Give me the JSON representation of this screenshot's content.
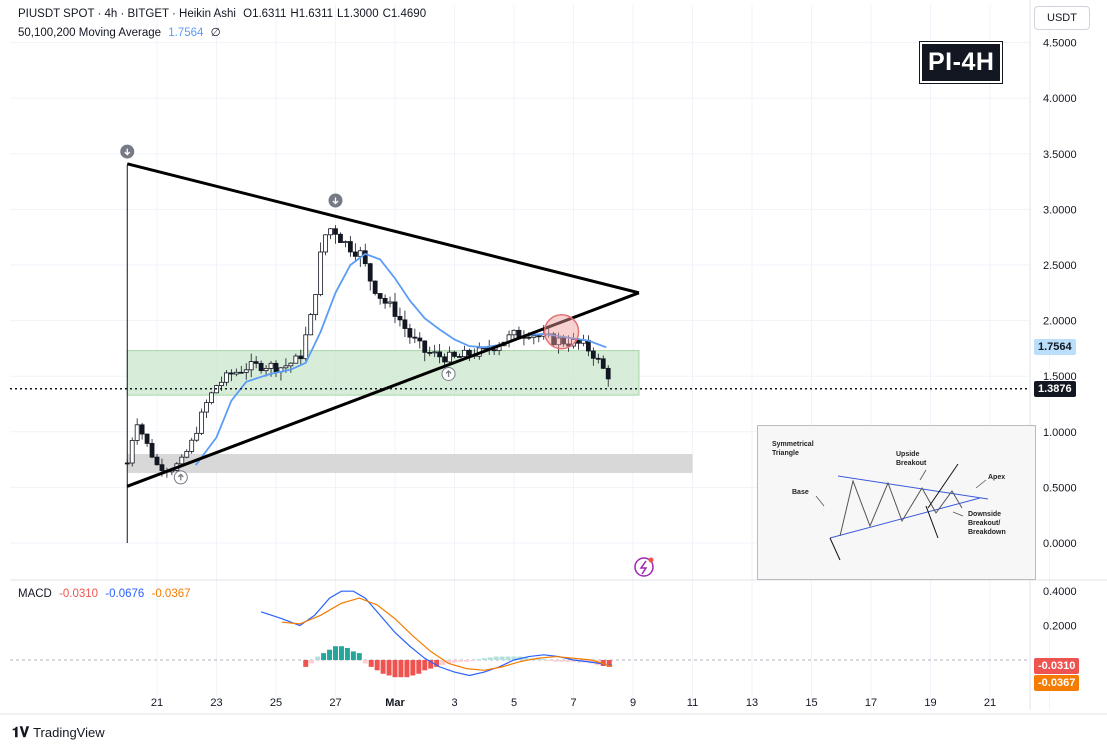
{
  "header": {
    "symbol": "PIUSDT SPOT · 4h · BITGET · Heikin Ashi",
    "ohlc": [
      {
        "label": "O",
        "value": "1.6311"
      },
      {
        "label": "H",
        "value": "1.6311"
      },
      {
        "label": "L",
        "value": "1.3000"
      },
      {
        "label": "C",
        "value": "1.4690"
      }
    ],
    "ma_label": "50,100,200 Moving Average",
    "ma_value": "1.7564",
    "ma_extra": "∅"
  },
  "badge": "PI-4H",
  "currency": "USDT",
  "price_axis_ticks": [
    "4.5000",
    "4.0000",
    "3.5000",
    "3.0000",
    "2.5000",
    "2.0000",
    "1.5000",
    "1.0000",
    "0.5000",
    "0.0000"
  ],
  "price_pills": {
    "ma": "1.7564",
    "last": "1.3876"
  },
  "macd": {
    "label": "MACD",
    "values": [
      "-0.0310",
      "-0.0676",
      "-0.0367"
    ],
    "axis_ticks": [
      "0.4000",
      "0.2000"
    ],
    "pills": [
      "-0.0310",
      "-0.0367"
    ]
  },
  "time_axis": [
    "21",
    "23",
    "25",
    "27",
    "Mar",
    "3",
    "5",
    "7",
    "9",
    "11",
    "13",
    "15",
    "17",
    "19",
    "21"
  ],
  "brand": "TradingView",
  "inset": {
    "title": "Symmetrical Triangle",
    "labels": {
      "upside": "Upside Breakout",
      "apex": "Apex",
      "base": "Base",
      "downside": "Downside Breakout/ Breakdown"
    }
  },
  "colors": {
    "up": "#26a69a",
    "down": "#ef5350",
    "ma": "#5b9cf6",
    "macd_line": "#2962ff",
    "signal_line": "#f57c00",
    "zone_green": "#c8e6c9",
    "zone_gray": "#d6d6d6",
    "last_price": "#131722"
  },
  "chart_data": {
    "type": "candlestick",
    "title": "PIUSDT SPOT · 4h · BITGET · Heikin Ashi",
    "ylim": [
      -0.05,
      4.6
    ],
    "x_tick_labels": [
      "21",
      "23",
      "25",
      "27",
      "Mar",
      "3",
      "5",
      "7",
      "9",
      "11",
      "13",
      "15",
      "17",
      "19",
      "21"
    ],
    "y_tick_labels": [
      "0.0000",
      "0.5000",
      "1.0000",
      "1.5000",
      "2.0000",
      "2.5000",
      "3.0000",
      "3.5000",
      "4.0000",
      "4.5000"
    ],
    "anchors": [
      {
        "d": 20.0,
        "p": 0.72
      },
      {
        "d": 20.3,
        "p": 1.12
      },
      {
        "d": 20.6,
        "p": 0.92
      },
      {
        "d": 21.0,
        "p": 0.7
      },
      {
        "d": 21.4,
        "p": 0.66
      },
      {
        "d": 21.8,
        "p": 0.72
      },
      {
        "d": 22.2,
        "p": 0.92
      },
      {
        "d": 22.6,
        "p": 1.22
      },
      {
        "d": 23.0,
        "p": 1.42
      },
      {
        "d": 23.5,
        "p": 1.52
      },
      {
        "d": 24.0,
        "p": 1.58
      },
      {
        "d": 24.6,
        "p": 1.6
      },
      {
        "d": 25.2,
        "p": 1.58
      },
      {
        "d": 25.8,
        "p": 1.66
      },
      {
        "d": 26.2,
        "p": 2.05
      },
      {
        "d": 26.6,
        "p": 2.75
      },
      {
        "d": 26.9,
        "p": 2.85
      },
      {
        "d": 27.3,
        "p": 2.7
      },
      {
        "d": 27.8,
        "p": 2.62
      },
      {
        "d": 28.2,
        "p": 2.35
      },
      {
        "d": 28.6,
        "p": 2.18
      },
      {
        "d": 29.0,
        "p": 2.08
      },
      {
        "d": 29.5,
        "p": 1.86
      },
      {
        "d": 30.0,
        "p": 1.72
      },
      {
        "d": 30.5,
        "p": 1.68
      },
      {
        "d": 31.0,
        "p": 1.66
      },
      {
        "d": 31.5,
        "p": 1.7
      },
      {
        "d": 32.0,
        "p": 1.72
      },
      {
        "d": 32.5,
        "p": 1.8
      },
      {
        "d": 33.0,
        "p": 1.87
      },
      {
        "d": 33.5,
        "p": 1.9
      },
      {
        "d": 34.0,
        "p": 1.84
      },
      {
        "d": 34.5,
        "p": 1.82
      },
      {
        "d": 35.0,
        "p": 1.8
      },
      {
        "d": 35.4,
        "p": 1.77
      },
      {
        "d": 35.7,
        "p": 1.69
      },
      {
        "d": 36.0,
        "p": 1.56
      },
      {
        "d": 36.3,
        "p": 1.47
      }
    ],
    "ma_line": [
      {
        "d": 22.3,
        "p": 0.7
      },
      {
        "d": 23.0,
        "p": 0.95
      },
      {
        "d": 23.5,
        "p": 1.28
      },
      {
        "d": 24.0,
        "p": 1.45
      },
      {
        "d": 24.8,
        "p": 1.52
      },
      {
        "d": 25.5,
        "p": 1.56
      },
      {
        "d": 26.0,
        "p": 1.62
      },
      {
        "d": 26.5,
        "p": 1.9
      },
      {
        "d": 27.0,
        "p": 2.25
      },
      {
        "d": 27.5,
        "p": 2.5
      },
      {
        "d": 28.0,
        "p": 2.6
      },
      {
        "d": 28.5,
        "p": 2.55
      },
      {
        "d": 29.0,
        "p": 2.38
      },
      {
        "d": 29.5,
        "p": 2.18
      },
      {
        "d": 30.0,
        "p": 2.02
      },
      {
        "d": 30.5,
        "p": 1.92
      },
      {
        "d": 31.0,
        "p": 1.83
      },
      {
        "d": 31.5,
        "p": 1.77
      },
      {
        "d": 32.0,
        "p": 1.76
      },
      {
        "d": 32.5,
        "p": 1.78
      },
      {
        "d": 33.0,
        "p": 1.83
      },
      {
        "d": 33.5,
        "p": 1.87
      },
      {
        "d": 34.0,
        "p": 1.88
      },
      {
        "d": 34.5,
        "p": 1.86
      },
      {
        "d": 35.0,
        "p": 1.84
      },
      {
        "d": 35.5,
        "p": 1.82
      },
      {
        "d": 36.1,
        "p": 1.76
      }
    ],
    "spike": {
      "d": 20.0,
      "low": 0.0,
      "high": 3.4
    },
    "trendlines": [
      {
        "d1": 20.0,
        "p1": 3.41,
        "d2": 37.2,
        "p2": 2.25
      },
      {
        "d1": 20.0,
        "p1": 0.51,
        "d2": 37.2,
        "p2": 2.25
      }
    ],
    "zones": [
      {
        "d1": 20.0,
        "d2": 37.2,
        "low": 1.33,
        "high": 1.73,
        "color": "green"
      },
      {
        "d1": 20.0,
        "d2": 39.0,
        "low": 0.63,
        "high": 0.8,
        "color": "gray"
      }
    ],
    "markers": [
      {
        "d": 20.0,
        "p": 3.52,
        "dir": "down"
      },
      {
        "d": 27.0,
        "p": 3.08,
        "dir": "down"
      },
      {
        "d": 21.8,
        "p": 0.59,
        "dir": "up"
      },
      {
        "d": 30.8,
        "p": 1.52,
        "dir": "up"
      }
    ],
    "circle": {
      "d": 34.6,
      "p": 1.9
    },
    "last_price": 1.3876,
    "macd": {
      "ylim": [
        -0.12,
        0.42
      ],
      "macd_line": [
        {
          "d": 24.5,
          "v": 0.28
        },
        {
          "d": 25.2,
          "v": 0.24
        },
        {
          "d": 25.8,
          "v": 0.2
        },
        {
          "d": 26.3,
          "v": 0.26
        },
        {
          "d": 26.8,
          "v": 0.36
        },
        {
          "d": 27.2,
          "v": 0.4
        },
        {
          "d": 27.6,
          "v": 0.4
        },
        {
          "d": 28.0,
          "v": 0.36
        },
        {
          "d": 28.5,
          "v": 0.26
        },
        {
          "d": 29.0,
          "v": 0.16
        },
        {
          "d": 29.5,
          "v": 0.08
        },
        {
          "d": 30.0,
          "v": 0.01
        },
        {
          "d": 30.5,
          "v": -0.04
        },
        {
          "d": 31.0,
          "v": -0.07
        },
        {
          "d": 31.5,
          "v": -0.09
        },
        {
          "d": 32.0,
          "v": -0.07
        },
        {
          "d": 32.5,
          "v": -0.04
        },
        {
          "d": 33.0,
          "v": 0.0
        },
        {
          "d": 33.5,
          "v": 0.02
        },
        {
          "d": 34.0,
          "v": 0.03
        },
        {
          "d": 34.5,
          "v": 0.02
        },
        {
          "d": 35.0,
          "v": 0.0
        },
        {
          "d": 35.5,
          "v": -0.01
        },
        {
          "d": 36.3,
          "v": -0.031
        }
      ],
      "signal_line": [
        {
          "d": 25.2,
          "v": 0.22
        },
        {
          "d": 25.8,
          "v": 0.21
        },
        {
          "d": 26.5,
          "v": 0.26
        },
        {
          "d": 27.2,
          "v": 0.33
        },
        {
          "d": 27.8,
          "v": 0.36
        },
        {
          "d": 28.4,
          "v": 0.32
        },
        {
          "d": 29.0,
          "v": 0.24
        },
        {
          "d": 29.6,
          "v": 0.14
        },
        {
          "d": 30.2,
          "v": 0.05
        },
        {
          "d": 30.8,
          "v": -0.02
        },
        {
          "d": 31.4,
          "v": -0.05
        },
        {
          "d": 32.0,
          "v": -0.06
        },
        {
          "d": 32.6,
          "v": -0.04
        },
        {
          "d": 33.2,
          "v": -0.01
        },
        {
          "d": 33.8,
          "v": 0.01
        },
        {
          "d": 34.4,
          "v": 0.02
        },
        {
          "d": 35.0,
          "v": 0.01
        },
        {
          "d": 35.6,
          "v": 0.0
        },
        {
          "d": 36.3,
          "v": -0.0367
        }
      ],
      "histogram": [
        {
          "d": 26.0,
          "v": -0.04
        },
        {
          "d": 26.2,
          "v": -0.02
        },
        {
          "d": 26.4,
          "v": 0.02
        },
        {
          "d": 26.6,
          "v": 0.04
        },
        {
          "d": 26.8,
          "v": 0.06
        },
        {
          "d": 27.0,
          "v": 0.08
        },
        {
          "d": 27.2,
          "v": 0.08
        },
        {
          "d": 27.4,
          "v": 0.07
        },
        {
          "d": 27.6,
          "v": 0.05
        },
        {
          "d": 27.8,
          "v": 0.04
        },
        {
          "d": 28.0,
          "v": -0.02
        },
        {
          "d": 28.2,
          "v": -0.04
        },
        {
          "d": 28.4,
          "v": -0.06
        },
        {
          "d": 28.6,
          "v": -0.08
        },
        {
          "d": 28.8,
          "v": -0.09
        },
        {
          "d": 29.0,
          "v": -0.1
        },
        {
          "d": 29.2,
          "v": -0.1
        },
        {
          "d": 29.4,
          "v": -0.1
        },
        {
          "d": 29.6,
          "v": -0.09
        },
        {
          "d": 29.8,
          "v": -0.08
        },
        {
          "d": 30.0,
          "v": -0.06
        },
        {
          "d": 30.2,
          "v": -0.05
        },
        {
          "d": 30.4,
          "v": -0.04
        },
        {
          "d": 30.6,
          "v": -0.03
        },
        {
          "d": 30.8,
          "v": -0.02
        },
        {
          "d": 31.0,
          "v": -0.015
        },
        {
          "d": 31.2,
          "v": -0.01
        },
        {
          "d": 31.4,
          "v": -0.01
        },
        {
          "d": 31.6,
          "v": -0.005
        },
        {
          "d": 31.8,
          "v": 0.005
        },
        {
          "d": 32.0,
          "v": 0.01
        },
        {
          "d": 32.2,
          "v": 0.015
        },
        {
          "d": 32.4,
          "v": 0.02
        },
        {
          "d": 32.6,
          "v": 0.02
        },
        {
          "d": 32.8,
          "v": 0.02
        },
        {
          "d": 33.0,
          "v": 0.02
        },
        {
          "d": 33.2,
          "v": 0.02
        },
        {
          "d": 33.4,
          "v": 0.015
        },
        {
          "d": 33.6,
          "v": 0.01
        },
        {
          "d": 33.8,
          "v": 0.01
        },
        {
          "d": 34.0,
          "v": 0.005
        },
        {
          "d": 34.2,
          "v": -0.005
        },
        {
          "d": 34.4,
          "v": -0.01
        },
        {
          "d": 34.6,
          "v": -0.01
        },
        {
          "d": 34.8,
          "v": -0.01
        },
        {
          "d": 35.0,
          "v": -0.01
        },
        {
          "d": 35.2,
          "v": -0.015
        },
        {
          "d": 35.4,
          "v": -0.015
        },
        {
          "d": 35.6,
          "v": -0.02
        },
        {
          "d": 35.8,
          "v": -0.03
        },
        {
          "d": 36.0,
          "v": -0.035
        },
        {
          "d": 36.2,
          "v": -0.04
        }
      ]
    }
  }
}
